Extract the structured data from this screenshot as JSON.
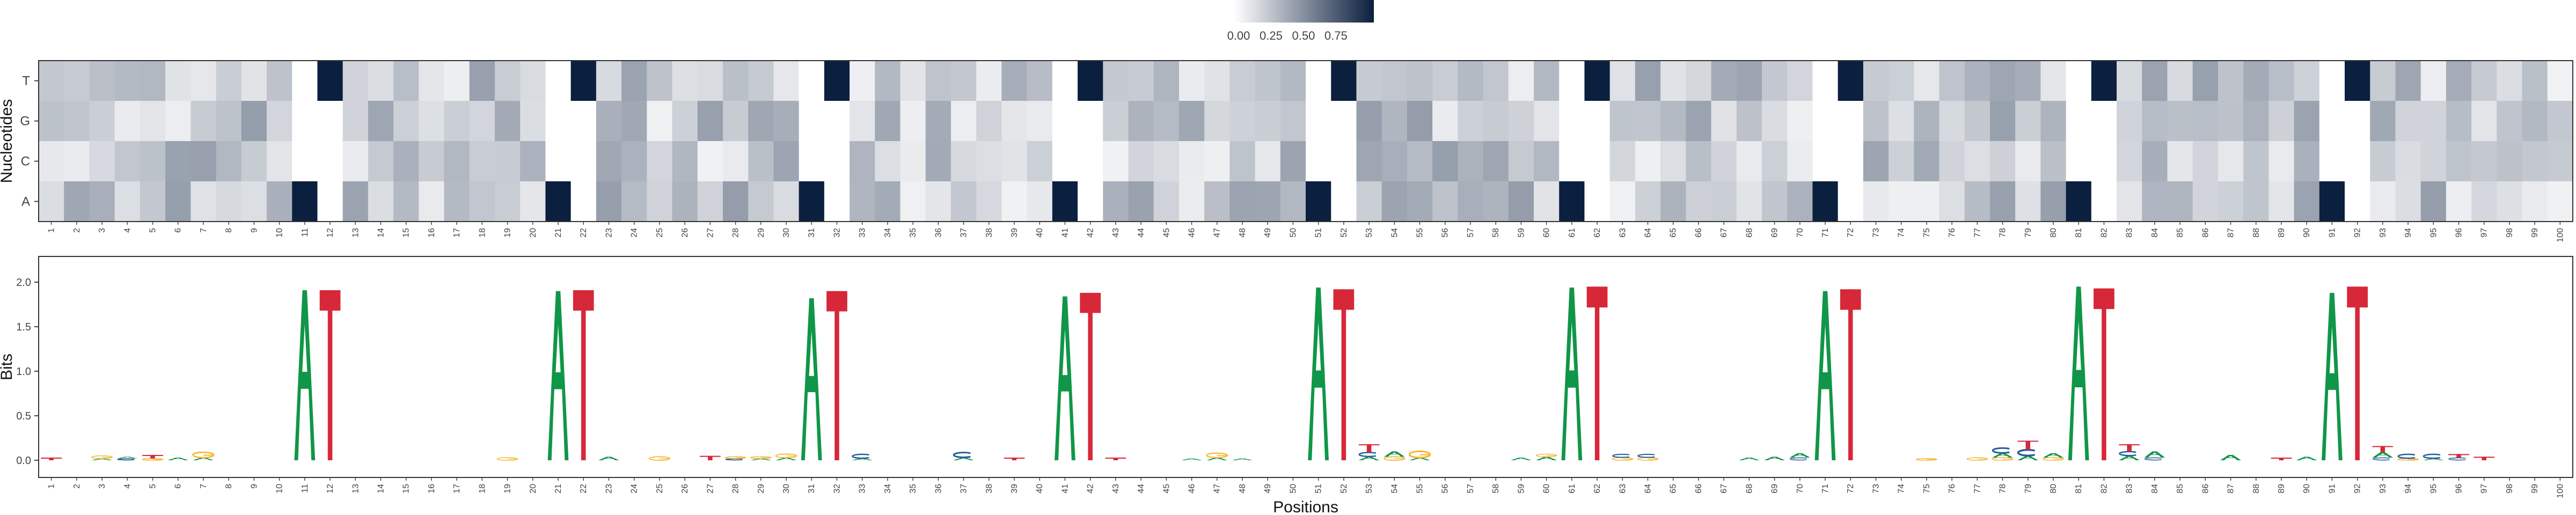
{
  "chart_data": [
    {
      "type": "heatmap",
      "title": "",
      "xlabel": "",
      "ylabel": "Nucleotides",
      "rows": [
        "T",
        "G",
        "C",
        "A"
      ],
      "positions_start": 1,
      "positions_end": 100,
      "value_range": [
        0,
        1
      ],
      "colorbar_ticks": [
        "0.00",
        "0.25",
        "0.50",
        "0.75"
      ],
      "colorscale": [
        "#ffffff",
        "#0b1f3e"
      ],
      "peaks": {
        "A": [
          11,
          21,
          31,
          41,
          51,
          61,
          71,
          81,
          91
        ],
        "T": [
          12,
          22,
          32,
          42,
          52,
          62,
          72,
          82,
          92
        ]
      },
      "grid": false
    },
    {
      "type": "sequence_logo",
      "title": "",
      "xlabel": "Positions",
      "ylabel": "Bits",
      "ylim": [
        0,
        2.05
      ],
      "yticks": [
        "0.0",
        "0.5",
        "1.0",
        "1.5",
        "2.0"
      ],
      "positions_start": 1,
      "positions_end": 100,
      "letter_colors": {
        "A": "#109648",
        "C": "#255c99",
        "G": "#f7b32b",
        "T": "#d62839"
      },
      "columns": [
        {
          "pos": 1,
          "letters": [
            [
              "T",
              0.03
            ]
          ]
        },
        {
          "pos": 3,
          "letters": [
            [
              "A",
              0.02
            ],
            [
              "G",
              0.03
            ]
          ]
        },
        {
          "pos": 4,
          "letters": [
            [
              "C",
              0.02
            ],
            [
              "A",
              0.02
            ]
          ]
        },
        {
          "pos": 5,
          "letters": [
            [
              "G",
              0.02
            ],
            [
              "T",
              0.04
            ]
          ]
        },
        {
          "pos": 6,
          "letters": [
            [
              "A",
              0.03
            ]
          ]
        },
        {
          "pos": 7,
          "letters": [
            [
              "A",
              0.03
            ],
            [
              "G",
              0.06
            ]
          ]
        },
        {
          "pos": 11,
          "letters": [
            [
              "A",
              1.91
            ]
          ]
        },
        {
          "pos": 12,
          "letters": [
            [
              "T",
              1.91
            ]
          ]
        },
        {
          "pos": 19,
          "letters": [
            [
              "G",
              0.03
            ]
          ]
        },
        {
          "pos": 21,
          "letters": [
            [
              "A",
              1.9
            ]
          ]
        },
        {
          "pos": 22,
          "letters": [
            [
              "T",
              1.91
            ]
          ]
        },
        {
          "pos": 23,
          "letters": [
            [
              "A",
              0.04
            ]
          ]
        },
        {
          "pos": 25,
          "letters": [
            [
              "G",
              0.04
            ]
          ]
        },
        {
          "pos": 27,
          "letters": [
            [
              "T",
              0.05
            ]
          ]
        },
        {
          "pos": 28,
          "letters": [
            [
              "C",
              0.02
            ],
            [
              "G",
              0.02
            ]
          ]
        },
        {
          "pos": 29,
          "letters": [
            [
              "A",
              0.02
            ],
            [
              "G",
              0.02
            ]
          ]
        },
        {
          "pos": 30,
          "letters": [
            [
              "A",
              0.03
            ],
            [
              "G",
              0.04
            ]
          ]
        },
        {
          "pos": 31,
          "letters": [
            [
              "A",
              1.82
            ]
          ]
        },
        {
          "pos": 32,
          "letters": [
            [
              "T",
              1.9
            ]
          ]
        },
        {
          "pos": 33,
          "letters": [
            [
              "A",
              0.02
            ],
            [
              "C",
              0.05
            ]
          ]
        },
        {
          "pos": 37,
          "letters": [
            [
              "A",
              0.03
            ],
            [
              "C",
              0.06
            ]
          ]
        },
        {
          "pos": 39,
          "letters": [
            [
              "T",
              0.03
            ]
          ]
        },
        {
          "pos": 41,
          "letters": [
            [
              "A",
              1.84
            ]
          ]
        },
        {
          "pos": 42,
          "letters": [
            [
              "T",
              1.88
            ]
          ]
        },
        {
          "pos": 43,
          "letters": [
            [
              "T",
              0.03
            ]
          ]
        },
        {
          "pos": 46,
          "letters": [
            [
              "A",
              0.02
            ]
          ]
        },
        {
          "pos": 47,
          "letters": [
            [
              "A",
              0.03
            ],
            [
              "G",
              0.05
            ]
          ]
        },
        {
          "pos": 48,
          "letters": [
            [
              "A",
              0.02
            ]
          ]
        },
        {
          "pos": 51,
          "letters": [
            [
              "A",
              1.94
            ]
          ]
        },
        {
          "pos": 52,
          "letters": [
            [
              "T",
              1.92
            ]
          ]
        },
        {
          "pos": 53,
          "letters": [
            [
              "A",
              0.04
            ],
            [
              "C",
              0.05
            ],
            [
              "T",
              0.09
            ]
          ]
        },
        {
          "pos": 54,
          "letters": [
            [
              "G",
              0.04
            ],
            [
              "A",
              0.06
            ]
          ]
        },
        {
          "pos": 55,
          "letters": [
            [
              "A",
              0.03
            ],
            [
              "G",
              0.07
            ]
          ]
        },
        {
          "pos": 59,
          "letters": [
            [
              "A",
              0.03
            ]
          ]
        },
        {
          "pos": 60,
          "letters": [
            [
              "A",
              0.04
            ],
            [
              "G",
              0.03
            ]
          ]
        },
        {
          "pos": 61,
          "letters": [
            [
              "A",
              1.94
            ]
          ]
        },
        {
          "pos": 62,
          "letters": [
            [
              "T",
              1.95
            ]
          ]
        },
        {
          "pos": 63,
          "letters": [
            [
              "G",
              0.03
            ],
            [
              "C",
              0.04
            ]
          ]
        },
        {
          "pos": 64,
          "letters": [
            [
              "G",
              0.03
            ],
            [
              "C",
              0.04
            ]
          ]
        },
        {
          "pos": 68,
          "letters": [
            [
              "A",
              0.03
            ]
          ]
        },
        {
          "pos": 69,
          "letters": [
            [
              "A",
              0.04
            ]
          ]
        },
        {
          "pos": 70,
          "letters": [
            [
              "C",
              0.03
            ],
            [
              "A",
              0.05
            ]
          ]
        },
        {
          "pos": 71,
          "letters": [
            [
              "A",
              1.9
            ]
          ]
        },
        {
          "pos": 72,
          "letters": [
            [
              "T",
              1.92
            ]
          ]
        },
        {
          "pos": 75,
          "letters": [
            [
              "G",
              0.02
            ]
          ]
        },
        {
          "pos": 77,
          "letters": [
            [
              "G",
              0.03
            ]
          ]
        },
        {
          "pos": 78,
          "letters": [
            [
              "G",
              0.03
            ],
            [
              "A",
              0.05
            ],
            [
              "C",
              0.06
            ]
          ]
        },
        {
          "pos": 79,
          "letters": [
            [
              "A",
              0.05
            ],
            [
              "C",
              0.07
            ],
            [
              "T",
              0.1
            ]
          ]
        },
        {
          "pos": 80,
          "letters": [
            [
              "G",
              0.03
            ],
            [
              "A",
              0.05
            ]
          ]
        },
        {
          "pos": 81,
          "letters": [
            [
              "A",
              1.95
            ]
          ]
        },
        {
          "pos": 82,
          "letters": [
            [
              "T",
              1.93
            ]
          ]
        },
        {
          "pos": 83,
          "letters": [
            [
              "A",
              0.05
            ],
            [
              "C",
              0.05
            ],
            [
              "T",
              0.08
            ]
          ]
        },
        {
          "pos": 84,
          "letters": [
            [
              "C",
              0.03
            ],
            [
              "A",
              0.07
            ]
          ]
        },
        {
          "pos": 87,
          "letters": [
            [
              "A",
              0.06
            ]
          ]
        },
        {
          "pos": 89,
          "letters": [
            [
              "T",
              0.03
            ]
          ]
        },
        {
          "pos": 90,
          "letters": [
            [
              "A",
              0.04
            ]
          ]
        },
        {
          "pos": 91,
          "letters": [
            [
              "A",
              1.88
            ]
          ]
        },
        {
          "pos": 92,
          "letters": [
            [
              "T",
              1.95
            ]
          ]
        },
        {
          "pos": 93,
          "letters": [
            [
              "C",
              0.03
            ],
            [
              "A",
              0.06
            ],
            [
              "T",
              0.07
            ]
          ]
        },
        {
          "pos": 94,
          "letters": [
            [
              "G",
              0.02
            ],
            [
              "C",
              0.05
            ]
          ]
        },
        {
          "pos": 95,
          "letters": [
            [
              "A",
              0.02
            ],
            [
              "C",
              0.05
            ]
          ]
        },
        {
          "pos": 96,
          "letters": [
            [
              "C",
              0.03
            ],
            [
              "T",
              0.04
            ]
          ]
        },
        {
          "pos": 97,
          "letters": [
            [
              "T",
              0.04
            ]
          ]
        }
      ],
      "grid": false
    }
  ]
}
